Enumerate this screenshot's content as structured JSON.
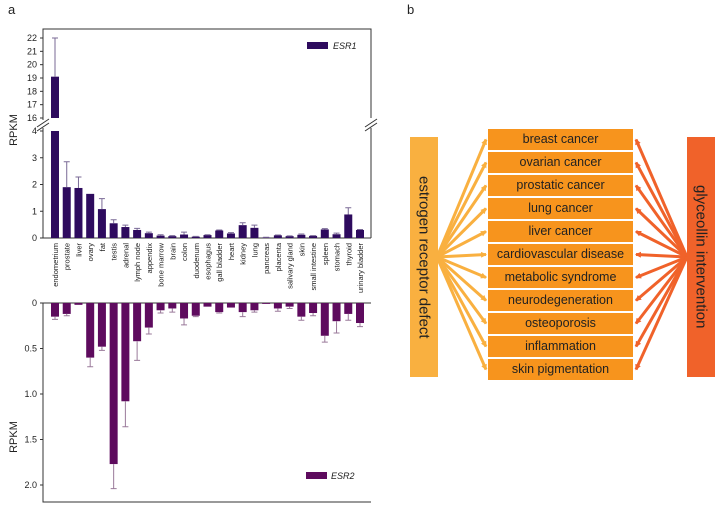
{
  "panel_labels": {
    "a": "a",
    "b": "b"
  },
  "chart_data": {
    "type": "bar",
    "categories": [
      "endometrium",
      "prostate",
      "liver",
      "ovary",
      "fat",
      "testis",
      "adrenal",
      "lymph node",
      "appendix",
      "bone marrow",
      "brain",
      "colon",
      "duodenum",
      "esophagus",
      "gall bladder",
      "heart",
      "kidney",
      "lung",
      "pancreas",
      "placenta",
      "salivary gland",
      "skin",
      "small intestine",
      "spleen",
      "stomach",
      "thyroid",
      "urinary bladder"
    ],
    "ylabel": "RPKM",
    "series": [
      {
        "name": "ESR1",
        "color": "#2e0b5e",
        "direction": "up",
        "axis_break": [
          4,
          16
        ],
        "ylim": [
          0,
          22
        ],
        "yticks": [
          0,
          1,
          2,
          3,
          4,
          16,
          17,
          18,
          19,
          20,
          21,
          22
        ],
        "values": [
          19.1,
          1.9,
          1.87,
          1.65,
          1.08,
          0.55,
          0.41,
          0.3,
          0.18,
          0.09,
          0.07,
          0.13,
          0.05,
          0.11,
          0.28,
          0.17,
          0.48,
          0.38,
          0.02,
          0.1,
          0.07,
          0.12,
          0.08,
          0.32,
          0.14,
          0.88,
          0.3
        ],
        "error_top": [
          22,
          2.85,
          2.28,
          1.65,
          1.47,
          0.68,
          0.48,
          0.36,
          0.22,
          0.12,
          0.09,
          0.22,
          0.06,
          0.12,
          0.3,
          0.2,
          0.57,
          0.48,
          0.03,
          0.11,
          0.08,
          0.15,
          0.09,
          0.35,
          0.18,
          1.13,
          0.32
        ]
      },
      {
        "name": "ESR2",
        "color": "#5e0b5e",
        "direction": "down",
        "ylim": [
          0,
          2.1
        ],
        "yticks": [
          "0",
          "0.5",
          "1.0",
          "1.5",
          "2.0"
        ],
        "values": [
          0.15,
          0.12,
          0.02,
          0.6,
          0.48,
          1.77,
          1.08,
          0.42,
          0.27,
          0.08,
          0.06,
          0.17,
          0.14,
          0.04,
          0.1,
          0.05,
          0.1,
          0.08,
          0.01,
          0.06,
          0.04,
          0.15,
          0.11,
          0.36,
          0.2,
          0.12,
          0.22
        ],
        "error_top": [
          0.18,
          0.14,
          0.02,
          0.7,
          0.52,
          2.04,
          1.36,
          0.63,
          0.34,
          0.11,
          0.1,
          0.24,
          0.15,
          0.04,
          0.11,
          0.05,
          0.15,
          0.1,
          0.01,
          0.09,
          0.06,
          0.19,
          0.14,
          0.43,
          0.33,
          0.19,
          0.26
        ]
      }
    ]
  },
  "diagram": {
    "left": {
      "label": "estrogen receptor defect",
      "color": "#f9b040"
    },
    "right": {
      "label": "glyceollin intervention",
      "color": "#f0622a"
    },
    "middle_color": "#f7941d",
    "diseases": [
      "breast cancer",
      "ovarian cancer",
      "prostatic cancer",
      "lung cancer",
      "liver cancer",
      "cardiovascular disease",
      "metabolic syndrome",
      "neurodegeneration",
      "osteoporosis",
      "inflammation",
      "skin pigmentation"
    ]
  }
}
